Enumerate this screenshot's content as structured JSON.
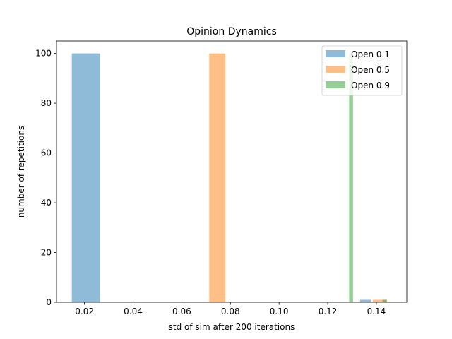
{
  "chart_data": {
    "type": "bar",
    "title": "Opinion Dynamics",
    "xlabel": "std of sim after 200 iterations",
    "ylabel": "number of repetitions",
    "xlim": [
      0.0085,
      0.1525
    ],
    "ylim": [
      0,
      105
    ],
    "x_ticks": [
      0.02,
      0.04,
      0.06,
      0.08,
      0.1,
      0.12,
      0.14
    ],
    "x_tick_labels": [
      "0.02",
      "0.04",
      "0.06",
      "0.08",
      "0.10",
      "0.12",
      "0.14"
    ],
    "y_ticks": [
      0,
      20,
      40,
      60,
      80,
      100
    ],
    "y_tick_labels": [
      "0",
      "20",
      "40",
      "60",
      "80",
      "100"
    ],
    "grid": false,
    "legend_position": "top-right",
    "series": [
      {
        "name": "Open 0.1",
        "color": "#1f77b4",
        "opacity": 0.5,
        "bars": [
          {
            "x0": 0.0148,
            "x1": 0.0264,
            "value": 100
          },
          {
            "x0": 0.1333,
            "x1": 0.1378,
            "value": 1
          }
        ]
      },
      {
        "name": "Open 0.5",
        "color": "#ff7f0e",
        "opacity": 0.5,
        "bars": [
          {
            "x0": 0.0713,
            "x1": 0.0779,
            "value": 100
          },
          {
            "x0": 0.1385,
            "x1": 0.1443,
            "value": 1
          }
        ]
      },
      {
        "name": "Open 0.9",
        "color": "#2ca02c",
        "opacity": 0.5,
        "bars": [
          {
            "x0": 0.1288,
            "x1": 0.1304,
            "value": 100
          },
          {
            "x0": 0.1425,
            "x1": 0.1443,
            "value": 1
          }
        ]
      }
    ]
  }
}
